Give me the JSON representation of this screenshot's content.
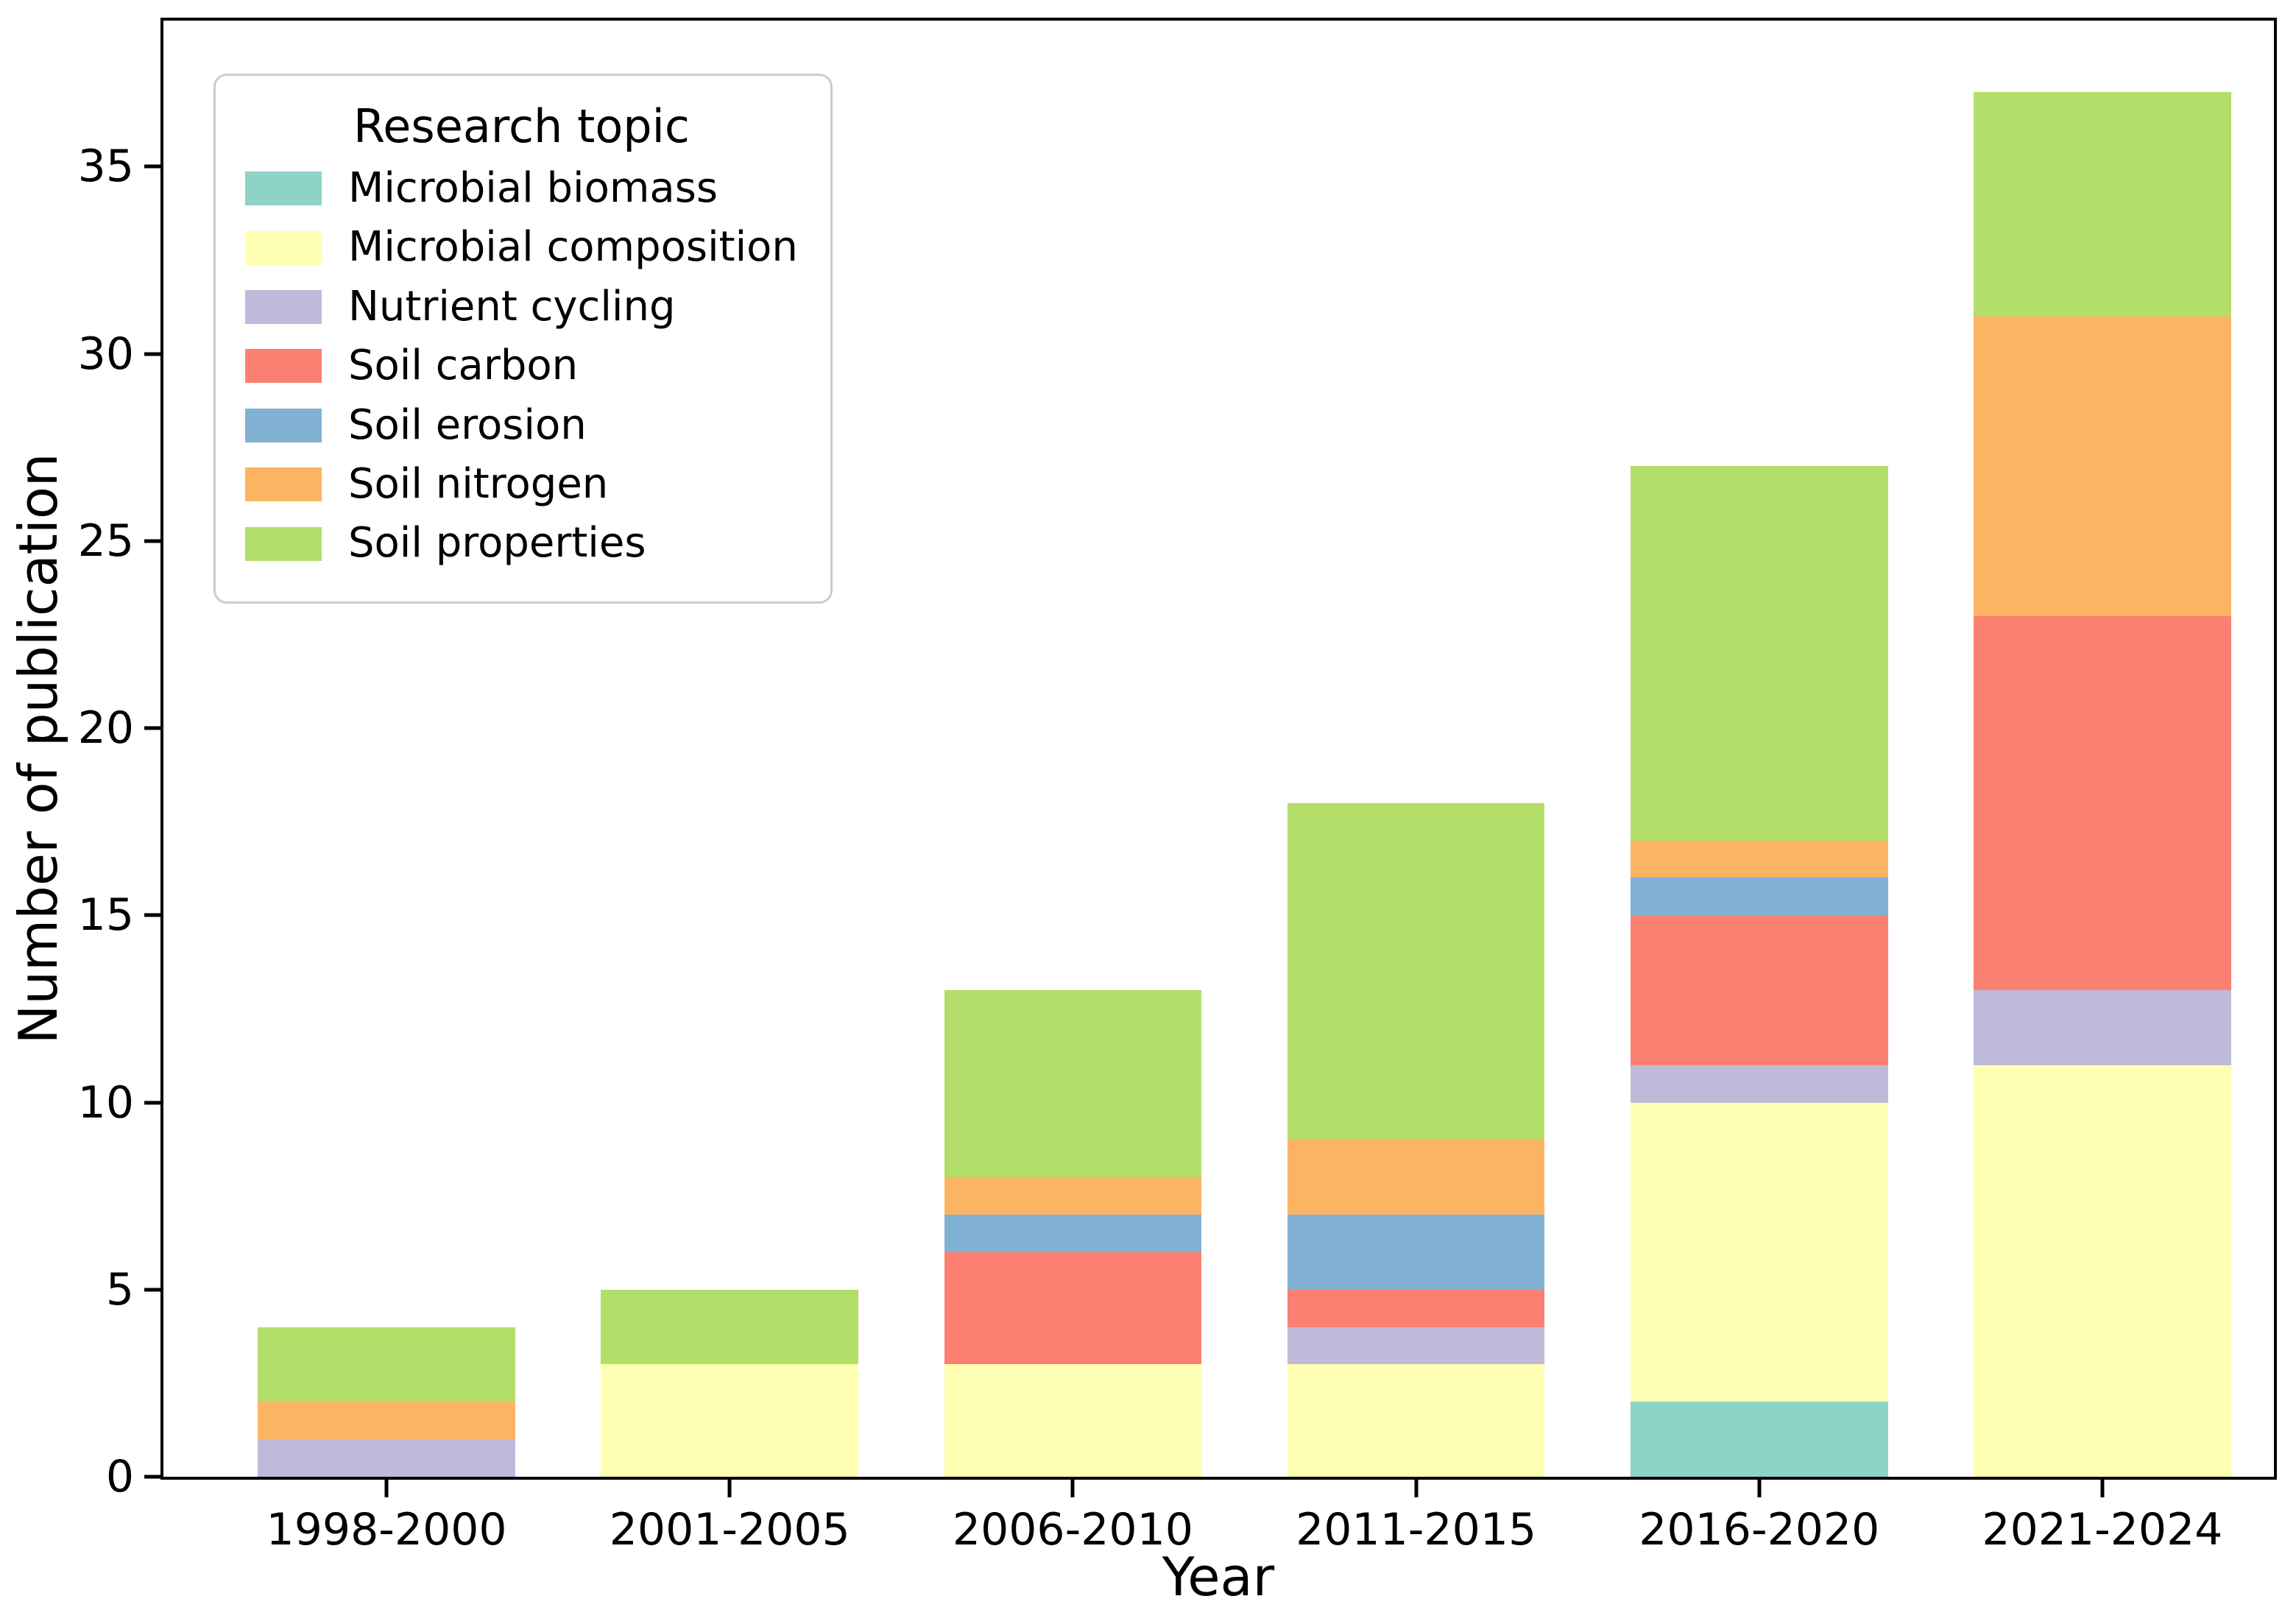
{
  "figure": {
    "background": "#ffffff"
  },
  "chart_data": {
    "type": "bar",
    "stacked": true,
    "title": "",
    "xlabel": "Year",
    "ylabel": "Number of publication",
    "categories": [
      "1998-2000",
      "2001-2005",
      "2006-2010",
      "2011-2015",
      "2016-2020",
      "2021-2024"
    ],
    "series": [
      {
        "name": "Microbial biomass",
        "color": "#8dd3c7",
        "values": [
          0,
          0,
          0,
          0,
          2,
          0
        ]
      },
      {
        "name": "Microbial composition",
        "color": "#ffffb3",
        "values": [
          0,
          3,
          3,
          3,
          8,
          11
        ]
      },
      {
        "name": "Nutrient cycling",
        "color": "#bebada",
        "values": [
          1,
          0,
          0,
          1,
          1,
          2
        ]
      },
      {
        "name": "Soil carbon",
        "color": "#fb8072",
        "values": [
          0,
          0,
          3,
          1,
          4,
          10
        ]
      },
      {
        "name": "Soil erosion",
        "color": "#80b1d3",
        "values": [
          0,
          0,
          1,
          2,
          1,
          0
        ]
      },
      {
        "name": "Soil nitrogen",
        "color": "#fdb462",
        "values": [
          1,
          0,
          1,
          2,
          1,
          8
        ]
      },
      {
        "name": "Soil properties",
        "color": "#b3de69",
        "values": [
          2,
          2,
          5,
          9,
          10,
          6
        ]
      }
    ],
    "totals": [
      4,
      5,
      13,
      18,
      27,
      37
    ],
    "y_ticks": [
      0,
      5,
      10,
      15,
      20,
      25,
      30,
      35
    ],
    "ylim": [
      0,
      38.9
    ],
    "grid": false,
    "legend": {
      "title": "Research topic",
      "position": "upper-left"
    },
    "axis_color": "#000000"
  }
}
